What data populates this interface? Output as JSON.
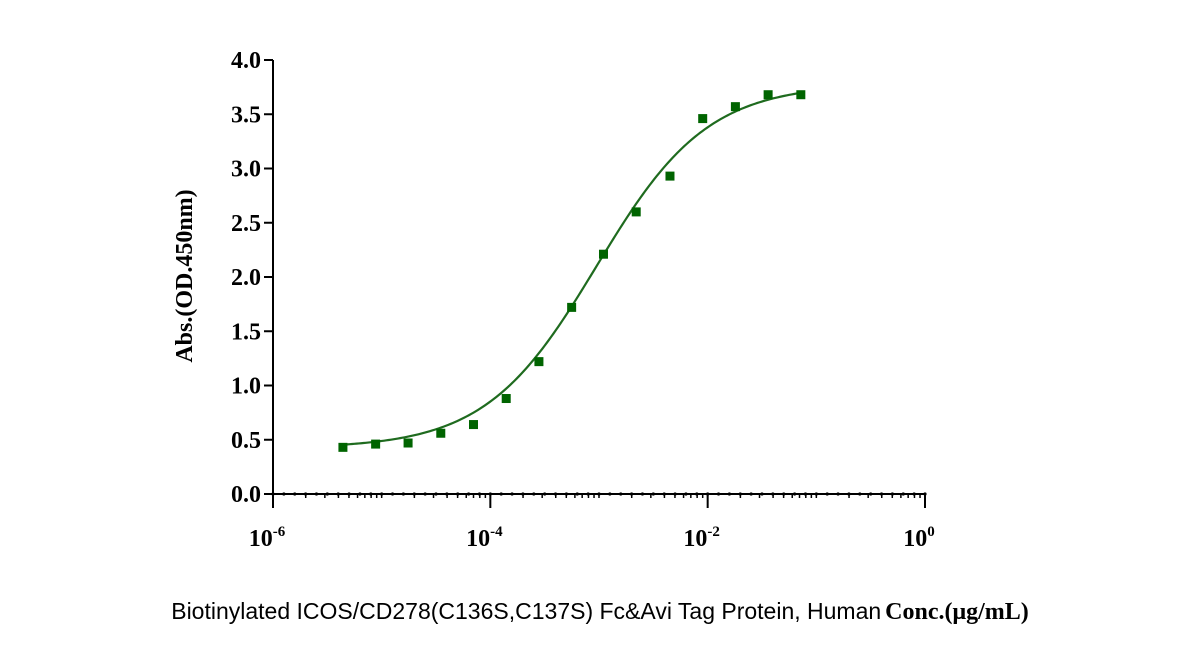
{
  "chart_data": {
    "type": "scatter",
    "ylabel": "Abs.(OD.450nm)",
    "xlabel_prefix": "Biotinylated ICOS/CD278(C136S,C137S) Fc&Avi Tag Protein, Human",
    "xlabel_unit": "Conc.(μg/mL)",
    "x_scale": "log",
    "xlim": [
      1e-06,
      1
    ],
    "ylim": [
      0,
      4
    ],
    "x_ticks": [
      {
        "value": 1e-06,
        "base": "10",
        "exp": "-6"
      },
      {
        "value": 0.0001,
        "base": "10",
        "exp": "-4"
      },
      {
        "value": 0.01,
        "base": "10",
        "exp": "-2"
      },
      {
        "value": 1,
        "base": "10",
        "exp": "0"
      }
    ],
    "y_ticks": [
      "0.0",
      "0.5",
      "1.0",
      "1.5",
      "2.0",
      "2.5",
      "3.0",
      "3.5",
      "4.0"
    ],
    "grid": false,
    "legend": "none",
    "series": [
      {
        "color": "#006400",
        "marker": "square",
        "fit_curve": "4PL",
        "x": [
          4.4e-06,
          8.8e-06,
          1.75e-05,
          3.5e-05,
          7e-05,
          0.00014,
          0.00028,
          0.00056,
          0.0011,
          0.0022,
          0.0045,
          0.009,
          0.018,
          0.036,
          0.072
        ],
        "y": [
          0.43,
          0.46,
          0.47,
          0.56,
          0.64,
          0.88,
          1.22,
          1.72,
          2.21,
          2.6,
          2.93,
          3.46,
          3.57,
          3.68,
          3.68
        ]
      }
    ],
    "fit": {
      "bottom": 0.42,
      "top": 3.78,
      "ec50": 0.00095,
      "hill": 0.85
    }
  }
}
